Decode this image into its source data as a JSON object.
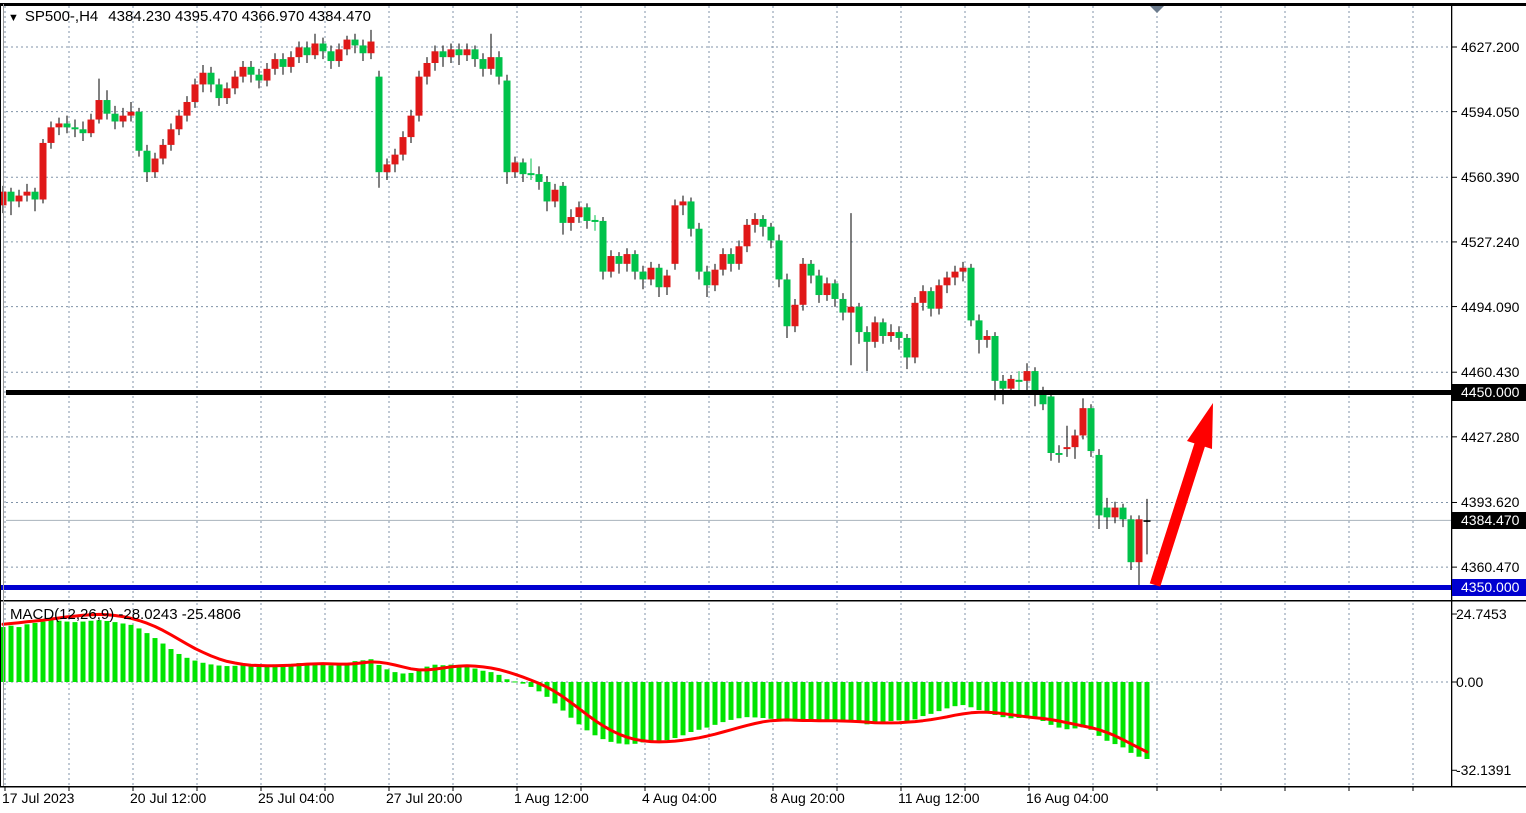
{
  "window": {
    "symbol_dropdown_icon": "▼",
    "title_symbol": "SP500-,H4",
    "title_ohlc": "4384.230 4395.470 4366.970 4384.470",
    "current_bar_marker_icon": "▼"
  },
  "colors": {
    "background": "#ffffff",
    "bull_candle": "#e01818",
    "bear_candle": "#00c24a",
    "wick": "#000000",
    "macd_histogram": "#00e400",
    "macd_signal": "#ff0000",
    "grid": "#8093a8",
    "resistance_line": "#000000",
    "support_line": "#0000d0",
    "current_price_line": "#a8b2bc",
    "arrow": "#ff0000",
    "badge_black": "#000000",
    "badge_blue": "#0000d0",
    "bar_marker": "#6a7a8c",
    "border": "#000000"
  },
  "price_axis": {
    "labels": [
      "4627.200",
      "4594.050",
      "4560.390",
      "4527.240",
      "4494.090",
      "4460.430",
      "4427.280",
      "4393.620",
      "4360.470"
    ],
    "badges": [
      {
        "label": "4450.000",
        "price": 4450.0,
        "bg": "black"
      },
      {
        "label": "4384.470",
        "price": 4384.47,
        "bg": "black"
      },
      {
        "label": "4350.000",
        "price": 4350.0,
        "bg": "blue"
      }
    ]
  },
  "time_axis": {
    "labels": [
      "17 Jul 2023",
      "20 Jul 12:00",
      "25 Jul 04:00",
      "27 Jul 20:00",
      "1 Aug 12:00",
      "4 Aug 04:00",
      "8 Aug 20:00",
      "11 Aug 12:00",
      "16 Aug 04:00"
    ]
  },
  "macd_panel": {
    "label": "MACD(12,26,9) -28.0243 -25.4806",
    "axis_labels": [
      "24.7453",
      "0.00",
      "-32.1391"
    ],
    "axis_values": [
      24.7453,
      0.0,
      -32.1391
    ]
  },
  "chart_data": {
    "type": "candlestick",
    "symbol": "SP500-",
    "timeframe": "H4",
    "title": "SP500-,H4",
    "last_ohlc": {
      "open": 4384.23,
      "high": 4395.47,
      "low": 4366.97,
      "close": 4384.47
    },
    "levels": {
      "resistance": 4450.0,
      "support": 4350.0,
      "current_price": 4384.47
    },
    "y_axis": {
      "ticks": [
        4627.2,
        4594.05,
        4560.39,
        4527.24,
        4494.09,
        4460.43,
        4427.28,
        4393.62,
        4360.47
      ]
    },
    "x_axis": {
      "tick_labels": [
        "17 Jul 2023",
        "20 Jul 12:00",
        "25 Jul 04:00",
        "27 Jul 20:00",
        "1 Aug 12:00",
        "4 Aug 04:00",
        "8 Aug 20:00",
        "11 Aug 12:00",
        "16 Aug 04:00"
      ]
    },
    "annotation_arrow": {
      "direction": "up",
      "from_price": 4352,
      "to_price": 4437
    },
    "candles": [
      [
        4546,
        4556,
        4542,
        4553
      ],
      [
        4553,
        4555,
        4541,
        4548
      ],
      [
        4548,
        4554,
        4545,
        4551
      ],
      [
        4551,
        4557,
        4548,
        4553
      ],
      [
        4553,
        4555,
        4543,
        4549
      ],
      [
        4549,
        4580,
        4547,
        4578
      ],
      [
        4578,
        4589,
        4575,
        4586
      ],
      [
        4586,
        4591,
        4582,
        4588
      ],
      [
        4588,
        4592,
        4583,
        4586
      ],
      [
        4586,
        4590,
        4581,
        4585
      ],
      [
        4585,
        4589,
        4579,
        4583
      ],
      [
        4583,
        4593,
        4581,
        4590
      ],
      [
        4590,
        4611,
        4588,
        4600
      ],
      [
        4600,
        4605,
        4590,
        4593
      ],
      [
        4593,
        4597,
        4585,
        4589
      ],
      [
        4589,
        4596,
        4586,
        4592
      ],
      [
        4592,
        4599,
        4589,
        4594
      ],
      [
        4594,
        4596,
        4571,
        4574
      ],
      [
        4574,
        4577,
        4558,
        4563
      ],
      [
        4563,
        4573,
        4560,
        4570
      ],
      [
        4570,
        4580,
        4567,
        4577
      ],
      [
        4577,
        4588,
        4574,
        4585
      ],
      [
        4585,
        4595,
        4582,
        4592
      ],
      [
        4592,
        4602,
        4589,
        4599
      ],
      [
        4599,
        4611,
        4596,
        4608
      ],
      [
        4608,
        4618,
        4604,
        4614
      ],
      [
        4614,
        4617,
        4604,
        4608
      ],
      [
        4608,
        4611,
        4597,
        4601
      ],
      [
        4601,
        4609,
        4598,
        4606
      ],
      [
        4606,
        4615,
        4603,
        4612
      ],
      [
        4612,
        4620,
        4609,
        4617
      ],
      [
        4617,
        4620,
        4609,
        4613
      ],
      [
        4613,
        4616,
        4606,
        4610
      ],
      [
        4610,
        4619,
        4607,
        4616
      ],
      [
        4616,
        4624,
        4613,
        4621
      ],
      [
        4621,
        4624,
        4613,
        4617
      ],
      [
        4617,
        4625,
        4614,
        4622
      ],
      [
        4622,
        4630,
        4619,
        4627
      ],
      [
        4627,
        4630,
        4619,
        4623
      ],
      [
        4623,
        4634,
        4621,
        4629
      ],
      [
        4629,
        4632,
        4621,
        4625
      ],
      [
        4625,
        4628,
        4616,
        4620
      ],
      [
        4620,
        4629,
        4617,
        4626
      ],
      [
        4626,
        4633,
        4623,
        4631
      ],
      [
        4631,
        4634,
        4624,
        4628
      ],
      [
        4628,
        4631,
        4620,
        4624
      ],
      [
        4624,
        4636,
        4621,
        4630
      ],
      [
        4612,
        4615,
        4555,
        4563
      ],
      [
        4563,
        4570,
        4559,
        4567
      ],
      [
        4567,
        4575,
        4563,
        4572
      ],
      [
        4572,
        4584,
        4569,
        4581
      ],
      [
        4581,
        4595,
        4578,
        4592
      ],
      [
        4592,
        4615,
        4589,
        4612
      ],
      [
        4612,
        4622,
        4608,
        4619
      ],
      [
        4619,
        4628,
        4615,
        4625
      ],
      [
        4625,
        4628,
        4617,
        4622
      ],
      [
        4622,
        4629,
        4619,
        4626
      ],
      [
        4626,
        4629,
        4618,
        4623
      ],
      [
        4623,
        4629,
        4620,
        4626
      ],
      [
        4626,
        4628,
        4617,
        4621
      ],
      [
        4621,
        4624,
        4612,
        4616
      ],
      [
        4616,
        4634,
        4613,
        4622
      ],
      [
        4622,
        4625,
        4608,
        4612
      ],
      [
        4610,
        4613,
        4557,
        4563
      ],
      [
        4563,
        4571,
        4560,
        4568
      ],
      [
        4568,
        4570,
        4558,
        4562
      ],
      [
        4562,
        4570,
        4559,
        4562,
        1
      ],
      [
        4562,
        4566,
        4554,
        4558
      ],
      [
        4558,
        4561,
        4543,
        4548
      ],
      [
        4548,
        4557,
        4545,
        4554
      ],
      [
        4556,
        4558,
        4531,
        4537
      ],
      [
        4537,
        4544,
        4533,
        4540
      ],
      [
        4540,
        4548,
        4537,
        4545
      ],
      [
        4545,
        4547,
        4534,
        4538
      ],
      [
        4538,
        4541,
        4533,
        4538,
        1
      ],
      [
        4538,
        4540,
        4508,
        4512
      ],
      [
        4512,
        4523,
        4509,
        4520
      ],
      [
        4520,
        4522,
        4511,
        4516
      ],
      [
        4516,
        4524,
        4512,
        4521
      ],
      [
        4521,
        4523,
        4508,
        4512
      ],
      [
        4512,
        4515,
        4503,
        4508
      ],
      [
        4508,
        4517,
        4505,
        4514
      ],
      [
        4514,
        4516,
        4499,
        4504
      ],
      [
        4504,
        4513,
        4500,
        4510
      ],
      [
        4516,
        4549,
        4513,
        4546
      ],
      [
        4546,
        4551,
        4541,
        4548
      ],
      [
        4548,
        4550,
        4530,
        4534
      ],
      [
        4534,
        4537,
        4508,
        4512
      ],
      [
        4512,
        4515,
        4499,
        4505
      ],
      [
        4505,
        4516,
        4502,
        4513
      ],
      [
        4513,
        4524,
        4510,
        4521
      ],
      [
        4521,
        4524,
        4512,
        4516
      ],
      [
        4516,
        4528,
        4513,
        4525
      ],
      [
        4525,
        4539,
        4522,
        4536
      ],
      [
        4536,
        4542,
        4532,
        4539
      ],
      [
        4539,
        4541,
        4530,
        4535
      ],
      [
        4535,
        4537,
        4524,
        4528
      ],
      [
        4528,
        4531,
        4504,
        4508
      ],
      [
        4508,
        4511,
        4478,
        4484
      ],
      [
        4484,
        4498,
        4481,
        4495
      ],
      [
        4495,
        4519,
        4492,
        4516
      ],
      [
        4516,
        4518,
        4506,
        4510
      ],
      [
        4510,
        4513,
        4496,
        4500
      ],
      [
        4500,
        4509,
        4497,
        4506
      ],
      [
        4506,
        4508,
        4494,
        4498
      ],
      [
        4498,
        4501,
        4487,
        4491
      ],
      [
        4491,
        4542,
        4464,
        4494
      ],
      [
        4494,
        4496,
        4475,
        4481
      ],
      [
        4481,
        4484,
        4461,
        4476
      ],
      [
        4476,
        4489,
        4473,
        4486
      ],
      [
        4486,
        4488,
        4475,
        4479
      ],
      [
        4479,
        4485,
        4476,
        4481
      ],
      [
        4481,
        4484,
        4472,
        4478
      ],
      [
        4478,
        4480,
        4462,
        4468
      ],
      [
        4468,
        4499,
        4465,
        4496
      ],
      [
        4496,
        4505,
        4492,
        4502
      ],
      [
        4502,
        4504,
        4489,
        4493
      ],
      [
        4493,
        4508,
        4490,
        4505
      ],
      [
        4505,
        4512,
        4501,
        4509
      ],
      [
        4509,
        4515,
        4505,
        4512
      ],
      [
        4512,
        4517,
        4507,
        4514
      ],
      [
        4514,
        4516,
        4484,
        4487
      ],
      [
        4487,
        4490,
        4470,
        4477
      ],
      [
        4477,
        4482,
        4473,
        4479
      ],
      [
        4479,
        4481,
        4446,
        4456
      ],
      [
        4456,
        4459,
        4444,
        4452
      ],
      [
        4452,
        4459,
        4449,
        4457
      ],
      [
        4457,
        4461,
        4451,
        4456,
        1
      ],
      [
        4456,
        4465,
        4450,
        4461
      ],
      [
        4461,
        4463,
        4443,
        4449
      ],
      [
        4449,
        4453,
        4441,
        4444
      ],
      [
        4448,
        4450,
        4415,
        4419
      ],
      [
        4419,
        4423,
        4414,
        4418
      ],
      [
        4421,
        4433,
        4417,
        4422
      ],
      [
        4422,
        4431,
        4416,
        4428
      ],
      [
        4428,
        4447,
        4426,
        4442
      ],
      [
        4442,
        4444,
        4417,
        4420
      ],
      [
        4418,
        4421,
        4380,
        4387
      ],
      [
        4391,
        4396,
        4380,
        4386
      ],
      [
        4386,
        4394,
        4383,
        4391
      ],
      [
        4391,
        4393,
        4381,
        4385
      ],
      [
        4385,
        4387,
        4359,
        4363
      ],
      [
        4363,
        4387,
        4351,
        4385
      ],
      [
        4384.2,
        4395.5,
        4367,
        4384.5
      ]
    ],
    "macd_histogram": [
      20,
      20.5,
      20,
      21,
      21.5,
      22,
      22.5,
      22.3,
      22,
      21.8,
      22,
      22.3,
      22.5,
      22.2,
      21.8,
      21.3,
      20.8,
      19.5,
      17.8,
      16,
      14,
      12,
      10.2,
      8.8,
      7.8,
      7,
      6.4,
      6,
      5.8,
      5.9,
      6,
      6.1,
      5.9,
      6.1,
      6.4,
      6.3,
      6.6,
      6.9,
      6.7,
      7,
      6.6,
      6,
      6.2,
      6.7,
      7.6,
      7.9,
      8.3,
      6.2,
      4.6,
      3.6,
      3.1,
      3.3,
      4.6,
      5.6,
      6.3,
      6.1,
      6.3,
      5.9,
      5.6,
      4.9,
      4.1,
      3.6,
      2.6,
      1,
      0.2,
      -0.6,
      -1.8,
      -3.4,
      -5.4,
      -7.8,
      -10.4,
      -13,
      -15.4,
      -17.6,
      -19.4,
      -20.8,
      -21.8,
      -22.4,
      -22.7,
      -22.5,
      -22,
      -21.4,
      -21.8,
      -21.2,
      -20.4,
      -19.4,
      -18.2,
      -17.4,
      -16.6,
      -15.6,
      -14.6,
      -13.8,
      -13.2,
      -12.8,
      -12.9,
      -13.1,
      -13.4,
      -13.8,
      -14.4,
      -14.2,
      -13.8,
      -14,
      -14.3,
      -14,
      -14.2,
      -14.5,
      -14.1,
      -14.8,
      -15.4,
      -15,
      -14.6,
      -14.2,
      -14,
      -14.4,
      -13.6,
      -12.4,
      -11.6,
      -10.6,
      -9.6,
      -8.8,
      -8.4,
      -9.2,
      -10.2,
      -10.8,
      -12,
      -12.8,
      -13.2,
      -13.1,
      -12.8,
      -13.2,
      -14.2,
      -15.6,
      -16.6,
      -17.2,
      -16.9,
      -16.5,
      -17.4,
      -19.6,
      -21.4,
      -22.6,
      -23.8,
      -25.8,
      -27.2,
      -28.02
    ],
    "macd_signal": [
      21,
      21.3,
      21.6,
      21.9,
      22.2,
      22.5,
      22.9,
      23.3,
      23.7,
      24,
      24.3,
      24.5,
      24.6,
      24.5,
      24.2,
      23.8,
      23.2,
      22.4,
      21.4,
      20.2,
      18.8,
      17.2,
      15.5,
      13.8,
      12.2,
      10.8,
      9.5,
      8.4,
      7.5,
      6.9,
      6.4,
      6.1,
      6,
      5.9,
      5.9,
      6,
      6.1,
      6.3,
      6.5,
      6.6,
      6.7,
      6.6,
      6.5,
      6.5,
      6.7,
      7,
      7.3,
      7.2,
      6.8,
      6.2,
      5.5,
      4.8,
      4.4,
      4.4,
      4.7,
      5.1,
      5.5,
      5.8,
      5.9,
      5.8,
      5.5,
      5.1,
      4.5,
      3.7,
      2.8,
      1.8,
      0.7,
      -0.5,
      -1.9,
      -3.5,
      -5.4,
      -7.5,
      -9.7,
      -11.9,
      -14,
      -15.9,
      -17.6,
      -19,
      -20.1,
      -20.9,
      -21.4,
      -21.7,
      -21.8,
      -21.7,
      -21.5,
      -21.2,
      -20.8,
      -20.3,
      -19.7,
      -19,
      -18.2,
      -17.4,
      -16.6,
      -15.8,
      -15.1,
      -14.5,
      -14.1,
      -13.9,
      -13.8,
      -13.9,
      -14,
      -14,
      -14.1,
      -14.1,
      -14.1,
      -14.2,
      -14.3,
      -14.4,
      -14.6,
      -14.8,
      -14.9,
      -14.9,
      -14.8,
      -14.6,
      -14.4,
      -14.1,
      -13.7,
      -13.2,
      -12.7,
      -12.1,
      -11.6,
      -11.2,
      -11,
      -11,
      -11.2,
      -11.5,
      -11.9,
      -12.3,
      -12.7,
      -13,
      -13.3,
      -13.7,
      -14.2,
      -14.8,
      -15.4,
      -16,
      -16.6,
      -17.4,
      -18.4,
      -19.6,
      -21,
      -22.5,
      -24,
      -25.48
    ]
  }
}
